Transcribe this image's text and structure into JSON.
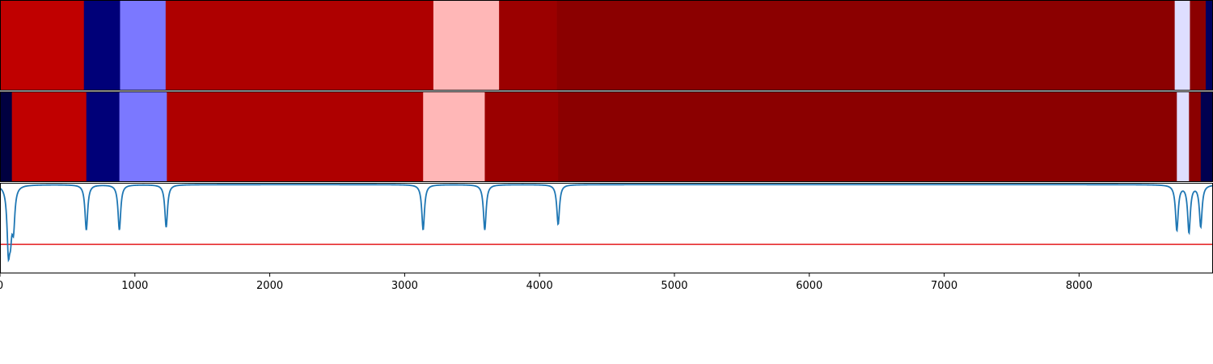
{
  "chart_data": [
    {
      "type": "heatmap",
      "name": "segmentation-track-top",
      "xlim": [
        0,
        8993
      ],
      "segments": [
        {
          "start": 0,
          "end": 622,
          "color": "#c00000"
        },
        {
          "start": 622,
          "end": 890,
          "color": "#000078"
        },
        {
          "start": 890,
          "end": 1228,
          "color": "#7b78ff"
        },
        {
          "start": 1228,
          "end": 3213,
          "color": "#ae0000"
        },
        {
          "start": 3213,
          "end": 3700,
          "color": "#ffb7b7"
        },
        {
          "start": 3700,
          "end": 4128,
          "color": "#9b0000"
        },
        {
          "start": 4128,
          "end": 8709,
          "color": "#8b0000"
        },
        {
          "start": 8709,
          "end": 8822,
          "color": "#dedeff"
        },
        {
          "start": 8822,
          "end": 8939,
          "color": "#8b0000"
        },
        {
          "start": 8939,
          "end": 8993,
          "color": "#000060"
        }
      ]
    },
    {
      "type": "heatmap",
      "name": "segmentation-track-bottom",
      "xlim": [
        0,
        8993
      ],
      "segments": [
        {
          "start": 0,
          "end": 88,
          "color": "#000040"
        },
        {
          "start": 88,
          "end": 640,
          "color": "#c00000"
        },
        {
          "start": 640,
          "end": 885,
          "color": "#000078"
        },
        {
          "start": 885,
          "end": 1237,
          "color": "#7b78ff"
        },
        {
          "start": 1237,
          "end": 3137,
          "color": "#ae0000"
        },
        {
          "start": 3137,
          "end": 3594,
          "color": "#ffb7b7"
        },
        {
          "start": 3594,
          "end": 4138,
          "color": "#9b0000"
        },
        {
          "start": 4138,
          "end": 8725,
          "color": "#8b0000"
        },
        {
          "start": 8725,
          "end": 8815,
          "color": "#dedeff"
        },
        {
          "start": 8815,
          "end": 8902,
          "color": "#8b0000"
        },
        {
          "start": 8902,
          "end": 8993,
          "color": "#000050"
        }
      ]
    },
    {
      "type": "line",
      "name": "boundary-score-panel",
      "xlim": [
        0,
        8993
      ],
      "ylim": [
        -1.0,
        0.0
      ],
      "threshold": {
        "y": -0.68,
        "color": "#e41a1c"
      },
      "line_color": "#1f77b4",
      "baseline": -0.02,
      "dips": [
        {
          "x": 62,
          "depth": 0.64
        },
        {
          "x": 78,
          "depth": 0.4
        },
        {
          "x": 100,
          "depth": 0.42
        },
        {
          "x": 640,
          "depth": 0.5
        },
        {
          "x": 885,
          "depth": 0.5
        },
        {
          "x": 1232,
          "depth": 0.47
        },
        {
          "x": 3137,
          "depth": 0.5
        },
        {
          "x": 3594,
          "depth": 0.5
        },
        {
          "x": 4138,
          "depth": 0.44
        },
        {
          "x": 8725,
          "depth": 0.5
        },
        {
          "x": 8815,
          "depth": 0.52
        },
        {
          "x": 8902,
          "depth": 0.46
        }
      ],
      "x_ticks": [
        0,
        1000,
        2000,
        3000,
        4000,
        5000,
        6000,
        7000,
        8000
      ],
      "x_tick_labels": [
        "0",
        "1000",
        "2000",
        "3000",
        "4000",
        "5000",
        "6000",
        "7000",
        "8000"
      ]
    }
  ]
}
